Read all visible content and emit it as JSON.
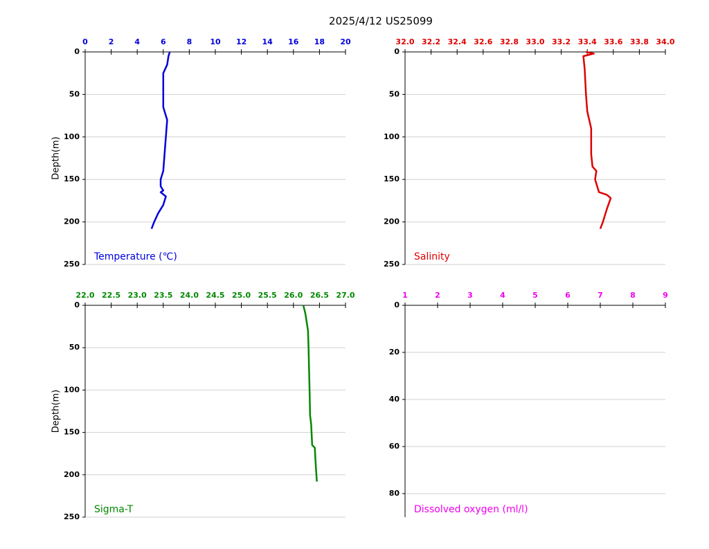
{
  "title": "2025/4/12  US25099",
  "chart_data": [
    {
      "type": "line",
      "label": "Temperature (℃)",
      "ylabel": "Depth(m)",
      "color": "#0000dd",
      "grid": true,
      "y_inverted": true,
      "xlim": [
        0,
        20
      ],
      "xticks": [
        0,
        2,
        4,
        6,
        8,
        10,
        12,
        14,
        16,
        18,
        20
      ],
      "ylim": [
        0,
        250
      ],
      "yticks": [
        0,
        50,
        100,
        150,
        200,
        250
      ],
      "x": [
        6.5,
        6.4,
        6.3,
        6.0,
        6.0,
        6.0,
        6.3,
        6.2,
        6.1,
        6.0,
        5.9,
        5.8,
        5.8,
        6.0,
        5.8,
        6.2,
        6.0,
        5.6,
        5.3,
        5.1
      ],
      "values": [
        0,
        5,
        15,
        25,
        50,
        65,
        80,
        100,
        120,
        140,
        145,
        150,
        158,
        163,
        165,
        170,
        180,
        190,
        200,
        208
      ]
    },
    {
      "type": "line",
      "label": "Salinity",
      "color": "#dd0000",
      "grid": true,
      "y_inverted": true,
      "xlim": [
        32,
        34
      ],
      "xticks": [
        {
          "value": 32,
          "label": "32.0"
        },
        32.2,
        32.4,
        32.6,
        32.8,
        {
          "value": 33,
          "label": "33.0"
        },
        33.2,
        33.4,
        33.6,
        33.8,
        {
          "value": 34,
          "label": "34.0"
        }
      ],
      "ylim": [
        0,
        250
      ],
      "yticks": [
        0,
        50,
        100,
        150,
        200,
        250
      ],
      "x": [
        33.39,
        33.45,
        33.37,
        33.38,
        33.39,
        33.4,
        33.43,
        33.43,
        33.44,
        33.47,
        33.46,
        33.48,
        33.49,
        33.55,
        33.58,
        33.55,
        33.52,
        33.5
      ],
      "values": [
        0,
        2,
        5,
        20,
        50,
        70,
        90,
        120,
        135,
        140,
        150,
        160,
        165,
        168,
        172,
        185,
        200,
        208
      ]
    },
    {
      "type": "line",
      "label": "Sigma-T",
      "ylabel": "Depth(m)",
      "color": "#008800",
      "grid": true,
      "y_inverted": true,
      "xlim": [
        22,
        27
      ],
      "xticks": [
        {
          "value": 22,
          "label": "22.0"
        },
        22.5,
        {
          "value": 23,
          "label": "23.0"
        },
        23.5,
        {
          "value": 24,
          "label": "24.0"
        },
        24.5,
        {
          "value": 25,
          "label": "25.0"
        },
        25.5,
        {
          "value": 26,
          "label": "26.0"
        },
        26.5,
        {
          "value": 27,
          "label": "27.0"
        }
      ],
      "ylim": [
        0,
        250
      ],
      "yticks": [
        0,
        50,
        100,
        150,
        200,
        250
      ],
      "x": [
        26.19,
        26.23,
        26.28,
        26.29,
        26.31,
        26.32,
        26.34,
        26.36,
        26.41,
        26.43,
        26.45
      ],
      "values": [
        0,
        10,
        30,
        50,
        100,
        130,
        140,
        165,
        168,
        190,
        208
      ]
    },
    {
      "type": "line",
      "label": "Dissolved oxygen (ml/l)",
      "color": "#ee00ee",
      "grid": true,
      "y_inverted": true,
      "xlim": [
        1,
        9
      ],
      "xticks": [
        1,
        2,
        3,
        4,
        5,
        6,
        7,
        8,
        9
      ],
      "ylim": [
        0,
        90
      ],
      "yticks": [
        0,
        20,
        40,
        60,
        80
      ]
    }
  ]
}
